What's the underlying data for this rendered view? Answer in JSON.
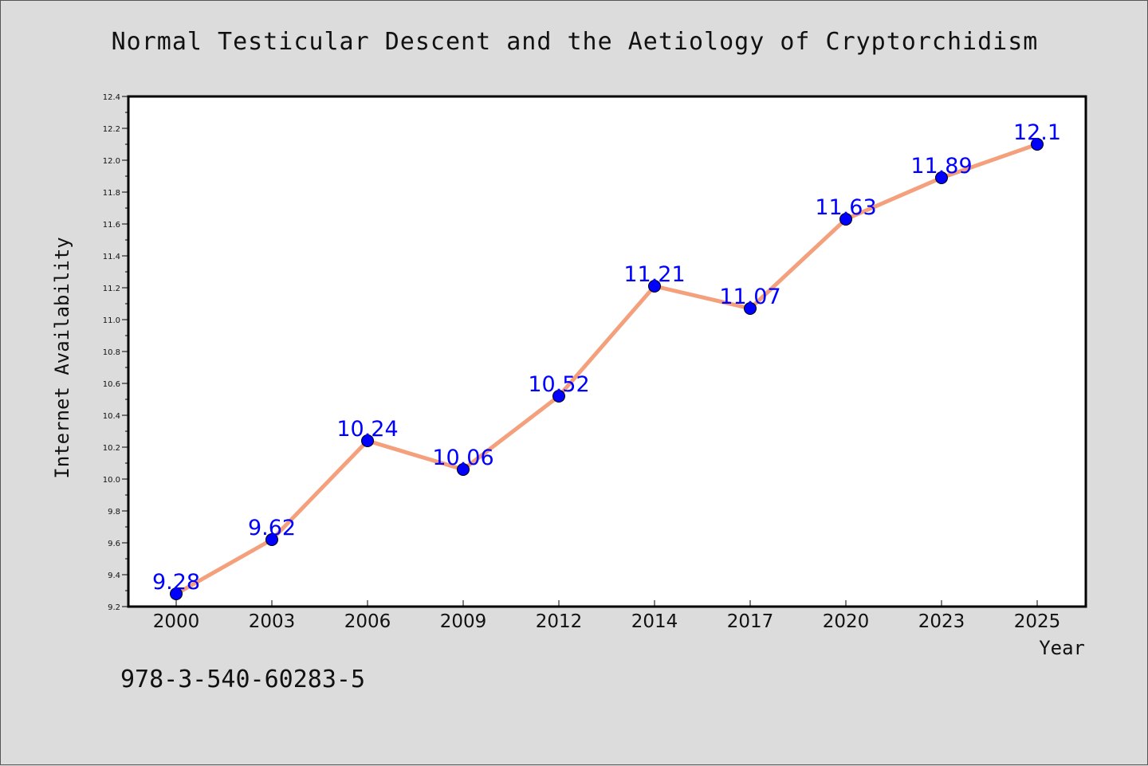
{
  "title": "Normal Testicular Descent and the Aetiology of Cryptorchidism",
  "isbn": "978-3-540-60283-5",
  "colors": {
    "line": "#f4a07c",
    "marker": "#0000ff",
    "data_label": "#0000ff",
    "background": "#dcdcdc",
    "plot_background": "#ffffff"
  },
  "chart_data": {
    "type": "line",
    "xlabel": "Year",
    "ylabel": "Internet Availability",
    "categories": [
      "2000",
      "2003",
      "2006",
      "2009",
      "2012",
      "2014",
      "2017",
      "2020",
      "2023",
      "2025"
    ],
    "values": [
      9.28,
      9.62,
      10.24,
      10.06,
      10.52,
      11.21,
      11.07,
      11.63,
      11.89,
      12.1
    ],
    "data_labels": [
      "9.28",
      "9.62",
      "10.24",
      "10.06",
      "10.52",
      "11.21",
      "11.07",
      "11.63",
      "11.89",
      "12.1"
    ],
    "ylim": [
      9.2,
      12.4
    ],
    "yticks": [
      "9.2",
      "9.4",
      "9.6",
      "9.8",
      "10.0",
      "10.2",
      "10.4",
      "10.6",
      "10.8",
      "11.0",
      "11.2",
      "11.4",
      "11.6",
      "11.8",
      "12.0",
      "12.2",
      "12.4"
    ],
    "grid": false,
    "legend": "none"
  }
}
